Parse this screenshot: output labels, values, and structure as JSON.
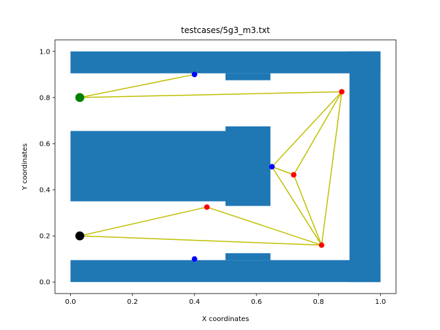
{
  "chart_data": {
    "type": "scatter",
    "title": "testcases/5g3_m3.txt",
    "xlabel": "X coordinates",
    "ylabel": "Y coordinates",
    "xlim": [
      -0.05,
      1.05
    ],
    "ylim": [
      -0.05,
      1.05
    ],
    "x_ticks": [
      "0.0",
      "0.2",
      "0.4",
      "0.6",
      "0.8",
      "1.0"
    ],
    "y_ticks": [
      "0.0",
      "0.2",
      "0.4",
      "0.6",
      "0.8",
      "1.0"
    ],
    "grid": false,
    "colors": {
      "obstacle": "#1f77b4",
      "edge": "#bfbf00",
      "start": "#008000",
      "goal": "#000000",
      "blue_node": "#0000ff",
      "red_node": "#ff0000"
    },
    "obstacles": [
      {
        "x0": 0.0,
        "y0": 0.905,
        "x1": 1.0,
        "y1": 1.0
      },
      {
        "x0": 0.5,
        "y0": 0.875,
        "x1": 0.645,
        "y1": 0.905
      },
      {
        "x0": 0.0,
        "y0": 0.35,
        "x1": 0.5,
        "y1": 0.655
      },
      {
        "x0": 0.5,
        "y0": 0.33,
        "x1": 0.645,
        "y1": 0.675
      },
      {
        "x0": 0.0,
        "y0": 0.0,
        "x1": 1.0,
        "y1": 0.095
      },
      {
        "x0": 0.5,
        "y0": 0.095,
        "x1": 0.645,
        "y1": 0.125
      },
      {
        "x0": 0.9,
        "y0": 0.0,
        "x1": 1.0,
        "y1": 1.0
      }
    ],
    "nodes": [
      {
        "id": "start",
        "x": 0.03,
        "y": 0.8,
        "color": "start",
        "size": "large"
      },
      {
        "id": "goal",
        "x": 0.03,
        "y": 0.2,
        "color": "goal",
        "size": "large"
      },
      {
        "id": "b1",
        "x": 0.4,
        "y": 0.9,
        "color": "blue_node",
        "size": "small"
      },
      {
        "id": "b2",
        "x": 0.4,
        "y": 0.1,
        "color": "blue_node",
        "size": "small"
      },
      {
        "id": "b3",
        "x": 0.65,
        "y": 0.5,
        "color": "blue_node",
        "size": "small"
      },
      {
        "id": "r1",
        "x": 0.875,
        "y": 0.825,
        "color": "red_node",
        "size": "small"
      },
      {
        "id": "r2",
        "x": 0.72,
        "y": 0.465,
        "color": "red_node",
        "size": "small"
      },
      {
        "id": "r3",
        "x": 0.44,
        "y": 0.325,
        "color": "red_node",
        "size": "small"
      },
      {
        "id": "r4",
        "x": 0.81,
        "y": 0.16,
        "color": "red_node",
        "size": "small"
      }
    ],
    "edges": [
      [
        "start",
        "b1"
      ],
      [
        "start",
        "r1"
      ],
      [
        "r1",
        "b3"
      ],
      [
        "r1",
        "r2"
      ],
      [
        "r1",
        "r4"
      ],
      [
        "b3",
        "r2"
      ],
      [
        "b3",
        "r4"
      ],
      [
        "r2",
        "r4"
      ],
      [
        "goal",
        "r3"
      ],
      [
        "goal",
        "r4"
      ],
      [
        "r3",
        "r4"
      ]
    ]
  }
}
